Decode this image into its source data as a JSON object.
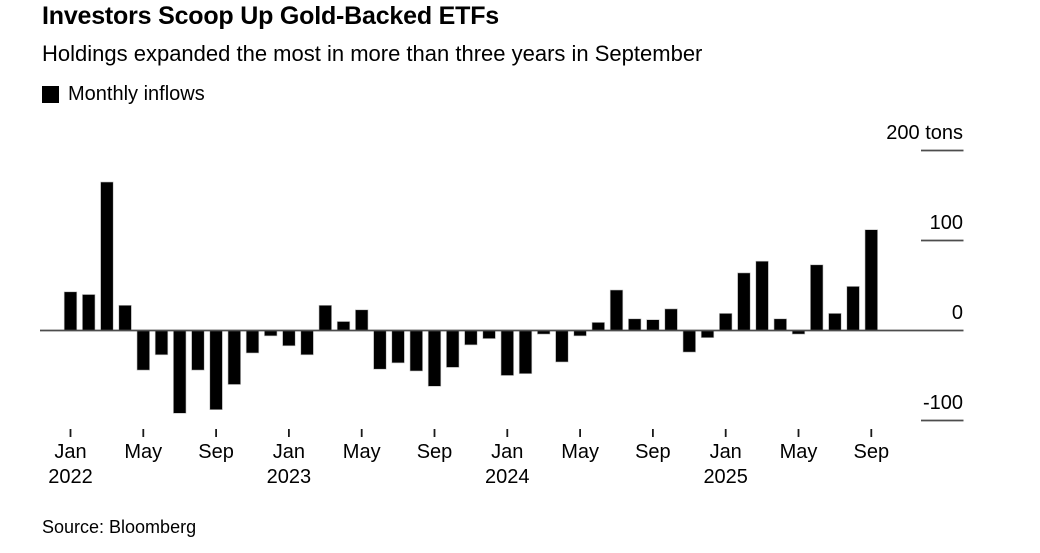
{
  "header": {
    "title": "Investors Scoop Up Gold-Backed ETFs",
    "subtitle": "Holdings expanded the most in more than three years in September"
  },
  "legend": {
    "label": "Monthly inflows",
    "swatch_color": "#000000"
  },
  "source": "Source: Bloomberg",
  "chart_data": {
    "type": "bar",
    "title": "Investors Scoop Up Gold-Backed ETFs",
    "subtitle": "Holdings expanded the most in more than three years in September",
    "series_name": "Monthly inflows",
    "unit": "tons",
    "bar_color": "#000000",
    "grid": false,
    "legend_position": "top-left",
    "ylim": [
      -130,
      230
    ],
    "x": [
      "2022-01",
      "2022-02",
      "2022-03",
      "2022-04",
      "2022-05",
      "2022-06",
      "2022-07",
      "2022-08",
      "2022-09",
      "2022-10",
      "2022-11",
      "2022-12",
      "2023-01",
      "2023-02",
      "2023-03",
      "2023-04",
      "2023-05",
      "2023-06",
      "2023-07",
      "2023-08",
      "2023-09",
      "2023-10",
      "2023-11",
      "2023-12",
      "2024-01",
      "2024-02",
      "2024-03",
      "2024-04",
      "2024-05",
      "2024-06",
      "2024-07",
      "2024-08",
      "2024-09",
      "2024-10",
      "2024-11",
      "2024-12",
      "2025-01",
      "2025-02",
      "2025-03",
      "2025-04",
      "2025-05",
      "2025-06",
      "2025-07",
      "2025-08",
      "2025-09"
    ],
    "values": [
      43,
      40,
      165,
      28,
      -44,
      -27,
      -92,
      -44,
      -88,
      -60,
      -25,
      -6,
      -17,
      -27,
      28,
      10,
      23,
      -43,
      -36,
      -45,
      -62,
      -41,
      -16,
      -9,
      -50,
      -48,
      -4,
      -35,
      -6,
      9,
      45,
      13,
      12,
      24,
      -24,
      -8,
      19,
      64,
      77,
      13,
      -4,
      73,
      19,
      49,
      112
    ],
    "y_ticks": [
      {
        "value": 200,
        "label": "200 tons"
      },
      {
        "value": 100,
        "label": "100"
      },
      {
        "value": 0,
        "label": "0"
      },
      {
        "value": -100,
        "label": "-100"
      }
    ],
    "x_ticks": [
      {
        "index": 0,
        "month": "Jan",
        "year": "2022"
      },
      {
        "index": 4,
        "month": "May",
        "year": ""
      },
      {
        "index": 8,
        "month": "Sep",
        "year": ""
      },
      {
        "index": 12,
        "month": "Jan",
        "year": "2023"
      },
      {
        "index": 16,
        "month": "May",
        "year": ""
      },
      {
        "index": 20,
        "month": "Sep",
        "year": ""
      },
      {
        "index": 24,
        "month": "Jan",
        "year": "2024"
      },
      {
        "index": 28,
        "month": "May",
        "year": ""
      },
      {
        "index": 32,
        "month": "Sep",
        "year": ""
      },
      {
        "index": 36,
        "month": "Jan",
        "year": "2025"
      },
      {
        "index": 40,
        "month": "May",
        "year": ""
      },
      {
        "index": 44,
        "month": "Sep",
        "year": ""
      }
    ]
  }
}
